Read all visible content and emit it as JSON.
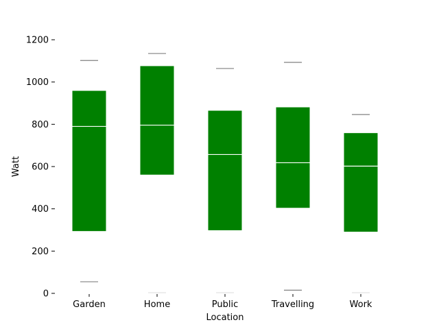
{
  "colors": {
    "box": "#008000",
    "median": "#ffffff",
    "whisker": "#808080",
    "axis": "#000000",
    "background": "#ffffff"
  },
  "chart_data": {
    "type": "box",
    "title": "",
    "xlabel": "Location",
    "ylabel": "Watt",
    "ylim": [
      0,
      1200
    ],
    "yticks": [
      0,
      200,
      400,
      600,
      800,
      1000,
      1200
    ],
    "ytick_labels": [
      "0",
      "200",
      "400",
      "600",
      "800",
      "1000",
      "1200"
    ],
    "grid": false,
    "legend": "none",
    "categories": [
      "Garden",
      "Home",
      "Public",
      "Travelling",
      "Work"
    ],
    "boxes": [
      {
        "category": "Garden",
        "whislo": 55,
        "q1": 293,
        "median": 790,
        "q3": 960,
        "whishi": 1102
      },
      {
        "category": "Home",
        "whislo": 3,
        "q1": 560,
        "median": 796,
        "q3": 1077,
        "whishi": 1135
      },
      {
        "category": "Public",
        "whislo": 3,
        "q1": 297,
        "median": 657,
        "q3": 866,
        "whishi": 1064
      },
      {
        "category": "Travelling",
        "whislo": 15,
        "q1": 403,
        "median": 618,
        "q3": 882,
        "whishi": 1093
      },
      {
        "category": "Work",
        "whislo": 3,
        "q1": 290,
        "median": 602,
        "q3": 760,
        "whishi": 846
      }
    ]
  }
}
